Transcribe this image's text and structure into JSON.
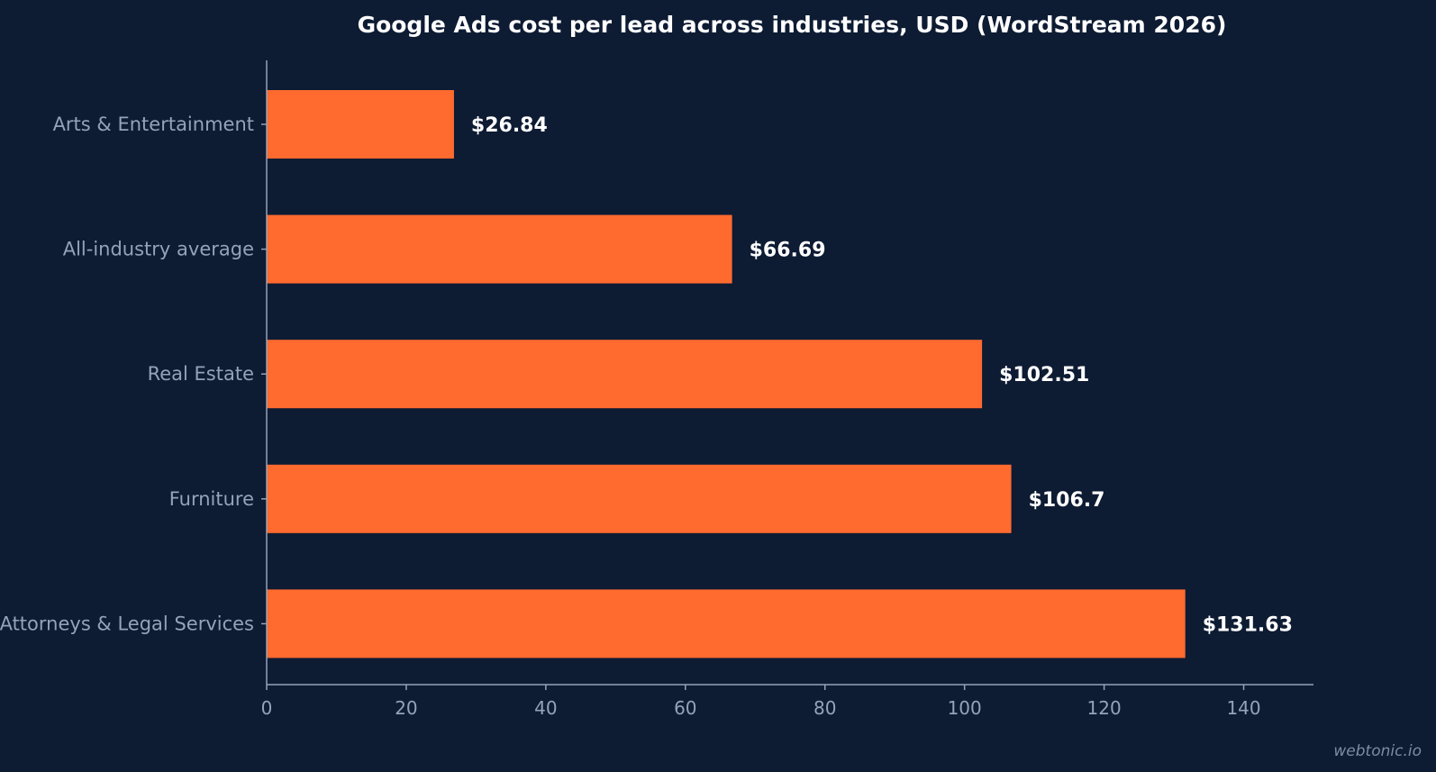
{
  "colors": {
    "background": "#0d1b33",
    "bar": "#ff6a2f",
    "axis": "#95a3b8",
    "title": "#ffffff",
    "value_label": "#ffffff"
  },
  "chart_data": {
    "type": "bar",
    "orientation": "horizontal",
    "title": "Google Ads cost per lead across industries, USD (WordStream 2026)",
    "categories": [
      "Arts & Entertainment",
      "All-industry average",
      "Real Estate",
      "Furniture",
      "Attorneys & Legal Services"
    ],
    "values": [
      26.84,
      66.69,
      102.51,
      106.7,
      131.63
    ],
    "value_labels": [
      "$26.84",
      "$66.69",
      "$102.51",
      "$106.7",
      "$131.63"
    ],
    "xlim": [
      0,
      150
    ],
    "xticks": [
      0,
      20,
      40,
      60,
      80,
      100,
      120,
      140
    ],
    "xlabel": "",
    "ylabel": "",
    "grid": false,
    "legend": "none"
  },
  "watermark": "webtonic.io"
}
